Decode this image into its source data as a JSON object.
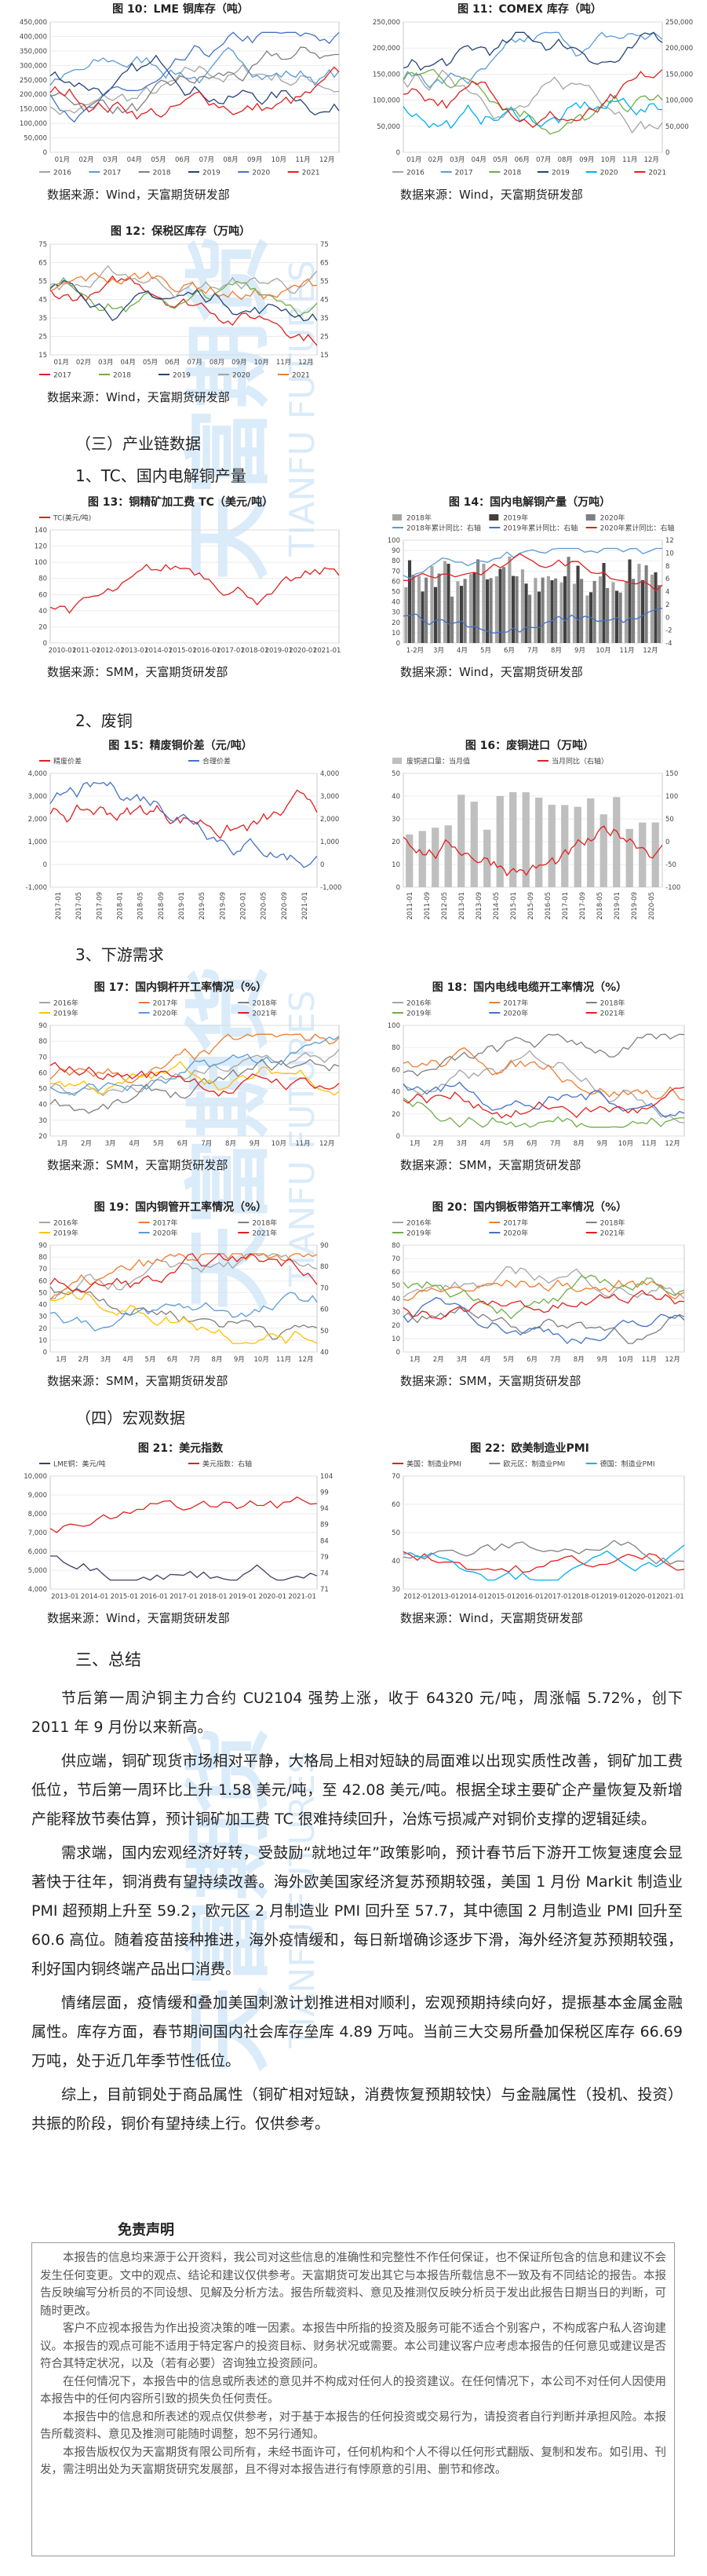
{
  "watermark": {
    "cn": "天富期货",
    "en": "TIANFU FUTURES"
  },
  "figures": [
    {
      "title": "图 10：LME 铜库存（吨）",
      "legend_position": "bottom",
      "legend": [
        {
          "name": "2016",
          "color": "#a5a5a5"
        },
        {
          "name": "2017",
          "color": "#5b9bd5"
        },
        {
          "name": "2018",
          "color": "#7f7f7f"
        },
        {
          "name": "2019",
          "color": "#264478"
        },
        {
          "name": "2020",
          "color": "#4472c4"
        },
        {
          "name": "2021",
          "color": "#e02020"
        }
      ],
      "yticks": [
        "450,000",
        "400,000",
        "350,000",
        "300,000",
        "250,000",
        "200,000",
        "150,000",
        "100,000",
        "50,000",
        "0"
      ],
      "xticks": [
        "01月",
        "02月",
        "03月",
        "04月",
        "05月",
        "06月",
        "07月",
        "08月",
        "09月",
        "10月",
        "11月",
        "12月"
      ],
      "source": "数据来源：Wind，天富期货研发部"
    },
    {
      "title": "图 11：COMEX 库存（吨）",
      "legend_position": "bottom",
      "legend": [
        {
          "name": "2016",
          "color": "#a5a5a5"
        },
        {
          "name": "2017",
          "color": "#5b9bd5"
        },
        {
          "name": "2018",
          "color": "#70ad47"
        },
        {
          "name": "2019",
          "color": "#264478"
        },
        {
          "name": "2020",
          "color": "#00b0f0"
        },
        {
          "name": "2021",
          "color": "#e02020"
        }
      ],
      "yticks": [
        "250,000",
        "200,000",
        "150,000",
        "100,000",
        "50,000",
        "0"
      ],
      "y2ticks": [
        "250,000",
        "200,000",
        "150,000",
        "100,000",
        "50,000",
        "0"
      ],
      "xticks": [
        "01月",
        "02月",
        "03月",
        "04月",
        "05月",
        "06月",
        "07月",
        "08月",
        "09月",
        "10月",
        "11月",
        "12月"
      ],
      "source": "数据来源：Wind，天富期货研发部"
    },
    {
      "title": "图 12：保税区库存（万吨）",
      "legend_position": "bottom",
      "legend": [
        {
          "name": "2017",
          "color": "#e02020"
        },
        {
          "name": "2018",
          "color": "#70ad47"
        },
        {
          "name": "2019",
          "color": "#264478"
        },
        {
          "name": "2020",
          "color": "#a5a5a5"
        },
        {
          "name": "2021",
          "color": "#ed7d31"
        }
      ],
      "yticks": [
        "75",
        "65",
        "55",
        "45",
        "35",
        "25",
        "15"
      ],
      "y2ticks": [
        "75",
        "65",
        "55",
        "45",
        "35",
        "25",
        "15"
      ],
      "xticks": [
        "01月",
        "02月",
        "03月",
        "04月",
        "05月",
        "06月",
        "07月",
        "08月",
        "09月",
        "10月",
        "11月",
        "12月"
      ],
      "source": "数据来源：Wind，天富期货研发部"
    },
    {
      "title": "图 13：铜精矿加工费 TC（美元/吨）",
      "legend_position": "top",
      "legend": [
        {
          "name": "TC(美元/吨)",
          "color": "#e02020"
        }
      ],
      "yticks": [
        "140",
        "120",
        "100",
        "80",
        "60",
        "40",
        "20",
        "0"
      ],
      "xticks": [
        "2010-01",
        "2011-01",
        "2012-01",
        "2013-01",
        "2014-01",
        "2015-01",
        "2016-01",
        "2017-01",
        "2018-01",
        "2019-01",
        "2020-01",
        "2021-01"
      ],
      "source": "数据来源：SMM，天富期货研发部"
    },
    {
      "title": "图 14：国内电解铜产量（万吨）",
      "legend_position": "top",
      "legend": [
        {
          "name": "2018年",
          "color": "#a5a5a5",
          "mark": "bar"
        },
        {
          "name": "2019年",
          "color": "#404040",
          "mark": "bar"
        },
        {
          "name": "2020年",
          "color": "#7f7f7f",
          "mark": "bar"
        },
        {
          "name": "2018年累计同比：右轴",
          "color": "#5b9bd5"
        },
        {
          "name": "2019年累计同比：右轴",
          "color": "#4472c4"
        },
        {
          "name": "2020年累计同比：右轴",
          "color": "#e02020"
        }
      ],
      "yticks": [
        "100",
        "90",
        "80",
        "70",
        "60",
        "50",
        "40",
        "30",
        "20",
        "10",
        "0"
      ],
      "y2ticks": [
        "12",
        "10",
        "8",
        "6",
        "4",
        "2",
        "0",
        "-2",
        "-4"
      ],
      "xticks": [
        "1-2月",
        "3月",
        "4月",
        "5月",
        "6月",
        "7月",
        "8月",
        "9月",
        "10月",
        "11月",
        "12月"
      ],
      "source": "数据来源：Wind，天富期货研发部"
    },
    {
      "title": "图 15：精废铜价差（元/吨）",
      "legend_position": "top",
      "legend": [
        {
          "name": "精废价差",
          "color": "#e02020"
        },
        {
          "name": "合理价差",
          "color": "#4472c4"
        }
      ],
      "yticks": [
        "4,000",
        "3,000",
        "2,000",
        "1,000",
        "0",
        "-1,000"
      ],
      "y2ticks": [
        "4,000",
        "3,000",
        "2,000",
        "1,000",
        "0",
        "-1,000"
      ],
      "xticks": [
        "2017-01",
        "2017-05",
        "2017-09",
        "2018-01",
        "2018-05",
        "2018-09",
        "2019-01",
        "2019-05",
        "2019-09",
        "2020-01",
        "2020-05",
        "2020-09",
        "2021-01"
      ]
    },
    {
      "title": "图 16：废铜进口（万吨）",
      "legend_position": "top",
      "legend": [
        {
          "name": "废铜进口量：当月值",
          "color": "#bfbfbf",
          "mark": "bar"
        },
        {
          "name": "当月同比（右轴）",
          "color": "#e02020"
        }
      ],
      "yticks": [
        "50",
        "40",
        "30",
        "20",
        "10",
        "0"
      ],
      "y2ticks": [
        "150",
        "100",
        "50",
        "0",
        "-50",
        "-100"
      ],
      "xticks": [
        "2011-01",
        "2011-09",
        "2012-05",
        "2013-01",
        "2013-09",
        "2014-05",
        "2015-01",
        "2015-09",
        "2016-05",
        "2017-01",
        "2017-09",
        "2018-05",
        "2019-01",
        "2019-09",
        "2020-05"
      ]
    },
    {
      "title": "图 17：国内铜杆开工率情况（%）",
      "legend_position": "top",
      "legend": [
        {
          "name": "2016年",
          "color": "#a5a5a5"
        },
        {
          "name": "2017年",
          "color": "#ed7d31"
        },
        {
          "name": "2018年",
          "color": "#7f7f7f"
        },
        {
          "name": "2019年",
          "color": "#ffc000"
        },
        {
          "name": "2020年",
          "color": "#5b9bd5"
        },
        {
          "name": "2021年",
          "color": "#e02020"
        }
      ],
      "yticks": [
        "90",
        "80",
        "70",
        "60",
        "50",
        "40",
        "30",
        "20"
      ],
      "xticks": [
        "1月",
        "2月",
        "3月",
        "4月",
        "5月",
        "6月",
        "7月",
        "8月",
        "9月",
        "10月",
        "11月",
        "12月"
      ],
      "source": "数据来源：SMM，天富期货研发部"
    },
    {
      "title": "图 18：国内电线电缆开工率情况（%）",
      "legend_position": "top",
      "legend": [
        {
          "name": "2016年",
          "color": "#a5a5a5"
        },
        {
          "name": "2017年",
          "color": "#ed7d31"
        },
        {
          "name": "2018年",
          "color": "#7f7f7f"
        },
        {
          "name": "2019年",
          "color": "#70ad47"
        },
        {
          "name": "2020年",
          "color": "#4472c4"
        },
        {
          "name": "2021年",
          "color": "#e02020"
        }
      ],
      "yticks": [
        "100",
        "80",
        "60",
        "40",
        "20",
        "0"
      ],
      "xticks": [
        "1月",
        "2月",
        "3月",
        "4月",
        "5月",
        "6月",
        "7月",
        "8月",
        "9月",
        "10月",
        "11月",
        "12月"
      ],
      "source": "数据来源：SMM，天富期货研发部"
    },
    {
      "title": "图 19：国内铜管开工率情况（%）",
      "legend_position": "top",
      "legend": [
        {
          "name": "2016年",
          "color": "#a5a5a5"
        },
        {
          "name": "2017年",
          "color": "#ed7d31"
        },
        {
          "name": "2018年",
          "color": "#7f7f7f"
        },
        {
          "name": "2019年",
          "color": "#ffc000"
        },
        {
          "name": "2020年",
          "color": "#5b9bd5"
        },
        {
          "name": "2021年",
          "color": "#e02020"
        }
      ],
      "yticks": [
        "90",
        "80",
        "70",
        "60",
        "50",
        "40",
        "30",
        "20",
        "10",
        "0"
      ],
      "y2ticks": [
        "90",
        "80",
        "70",
        "60",
        "50",
        "40"
      ],
      "xticks": [
        "1月",
        "2月",
        "3月",
        "4月",
        "5月",
        "6月",
        "7月",
        "8月",
        "9月",
        "10月",
        "11月",
        "12月"
      ],
      "source": "数据来源：SMM，天富期货研发部"
    },
    {
      "title": "图 20：国内铜板带箔开工率情况（%）",
      "legend_position": "top",
      "legend": [
        {
          "name": "2016年",
          "color": "#a5a5a5"
        },
        {
          "name": "2017年",
          "color": "#ed7d31"
        },
        {
          "name": "2018年",
          "color": "#7f7f7f"
        },
        {
          "name": "2019年",
          "color": "#70ad47"
        },
        {
          "name": "2020年",
          "color": "#4472c4"
        },
        {
          "name": "2021年",
          "color": "#e02020"
        }
      ],
      "yticks": [
        "80",
        "70",
        "60",
        "50",
        "40",
        "30",
        "20",
        "10",
        "0"
      ],
      "xticks": [
        "1月",
        "2月",
        "3月",
        "4月",
        "5月",
        "6月",
        "7月",
        "8月",
        "9月",
        "10月",
        "11月",
        "12月"
      ],
      "source": "数据来源：SMM，天富期货研发部"
    },
    {
      "title": "图 21：美元指数",
      "legend_position": "top",
      "legend": [
        {
          "name": "LME铜：美元/吨",
          "color": "#404060"
        },
        {
          "name": "美元指数：右轴",
          "color": "#e02020"
        }
      ],
      "yticks": [
        "10,000",
        "9,000",
        "8,000",
        "7,000",
        "6,000",
        "5,000",
        "4,000"
      ],
      "y2ticks": [
        "104",
        "99",
        "94",
        "89",
        "84",
        "79",
        "74",
        "71"
      ],
      "xticks": [
        "2013-01",
        "2014-01",
        "2015-01",
        "2016-01",
        "2017-01",
        "2018-01",
        "2019-01",
        "2020-01",
        "2021-01"
      ],
      "source": "数据来源：Wind，天富期货研发部"
    },
    {
      "title": "图 22：欧美制造业PMI",
      "legend_position": "top",
      "legend": [
        {
          "name": "美国：制造业PMI",
          "color": "#e02020"
        },
        {
          "name": "欧元区：制造业PMI",
          "color": "#7f7f7f"
        },
        {
          "name": "德国：制造业PMI",
          "color": "#00b0f0"
        }
      ],
      "yticks": [
        "70",
        "60",
        "50",
        "40",
        "30"
      ],
      "xticks": [
        "2012-01",
        "2013-01",
        "2014-01",
        "2015-01",
        "2016-01",
        "2017-01",
        "2018-01",
        "2019-01",
        "2020-01",
        "2021-01"
      ],
      "source": "数据来源：Wind，天富期货研发部"
    }
  ],
  "headings": [
    "（三）产业链数据",
    "1、TC、国内电解铜产量",
    "2、废铜",
    "3、下游需求",
    "（四）宏观数据",
    "三、总结"
  ],
  "summary": [
    "节后第一周沪铜主力合约 CU2104 强势上涨，收于 64320 元/吨，周涨幅 5.72%，创下 2011 年 9 月份以来新高。",
    "供应端，铜矿现货市场相对平静，大格局上相对短缺的局面难以出现实质性改善，铜矿加工费低位，节后第一周环比上升 1.58 美元/吨，至 42.08 美元/吨。根据全球主要矿企产量恢复及新增产能释放节奏估算，预计铜矿加工费 TC 很难持续回升，冶炼亏损减产对铜价支撑的逻辑延续。",
    "需求端，国内宏观经济好转，受鼓励“就地过年”政策影响，预计春节后下游开工恢复速度会显著快于往年，铜消费有望持续改善。海外欧美国家经济复苏预期较强，美国 1 月份 Markit 制造业 PMI 超预期上升至 59.2，欧元区 2 月制造业 PMI 回升至 57.7，其中德国 2 月制造业 PMI 回升至 60.6 高位。随着疫苗接种推进，海外疫情缓和，每日新增确诊逐步下滑，海外经济复苏预期较强，利好国内铜终端产品出口消费。",
    "情绪层面，疫情缓和叠加美国刺激计划推进相对顺利，宏观预期持续向好，提振基本金属金融属性。库存方面，春节期间国内社会库存垒库 4.89 万吨。当前三大交易所叠加保税区库存 66.69 万吨，处于近几年季节性低位。",
    "综上，目前铜处于商品属性（铜矿相对短缺，消费恢复预期较快）与金融属性（投机、投资）共振的阶段，铜价有望持续上行。仅供参考。"
  ],
  "disclaimer": {
    "title": "免责声明",
    "paragraphs": [
      "本报告的信息均来源于公开资料，我公司对这些信息的准确性和完整性不作任何保证，也不保证所包含的信息和建议不会发生任何变更。文中的观点、结论和建议仅供参考。天富期货可发出其它与本报告所载信息不一致及有不同结论的报告。本报告反映编写分析员的不同设想、见解及分析方法。报告所载资料、意见及推测仅反映分析员于发出此报告日期当日的判断，可随时更改。",
      "客户不应视本报告为作出投资决策的唯一因素。本报告中所指的投资及服务可能不适合个别客户，不构成客户私人咨询建议。本报告的观点可能不适用于特定客户的投资目标、财务状况或需要。本公司建议客户应考虑本报告的任何意见或建议是否符合其特定状况，以及（若有必要）咨询独立投资顾问。",
      "在任何情况下，本报告中的信息或所表述的意见并不构成对任何人的投资建议。在任何情况下，本公司不对任何人因使用本报告中的任何内容所引致的损失负任何责任。",
      "本报告中的信息和所表述的观点仅供参考，对于基于本报告的任何投资或交易行为，请投资者自行判断并承担风险。本报告所载资料、意见及推测可能随时调整，恕不另行通知。",
      "本报告版权仅为天富期货有限公司所有，未经书面许可，任何机构和个人不得以任何形式翻版、复制和发布。如引用、刊发，需注明出处为天富期货研究发展部，且不得对本报告进行有悖原意的引用、删节和修改。"
    ]
  }
}
